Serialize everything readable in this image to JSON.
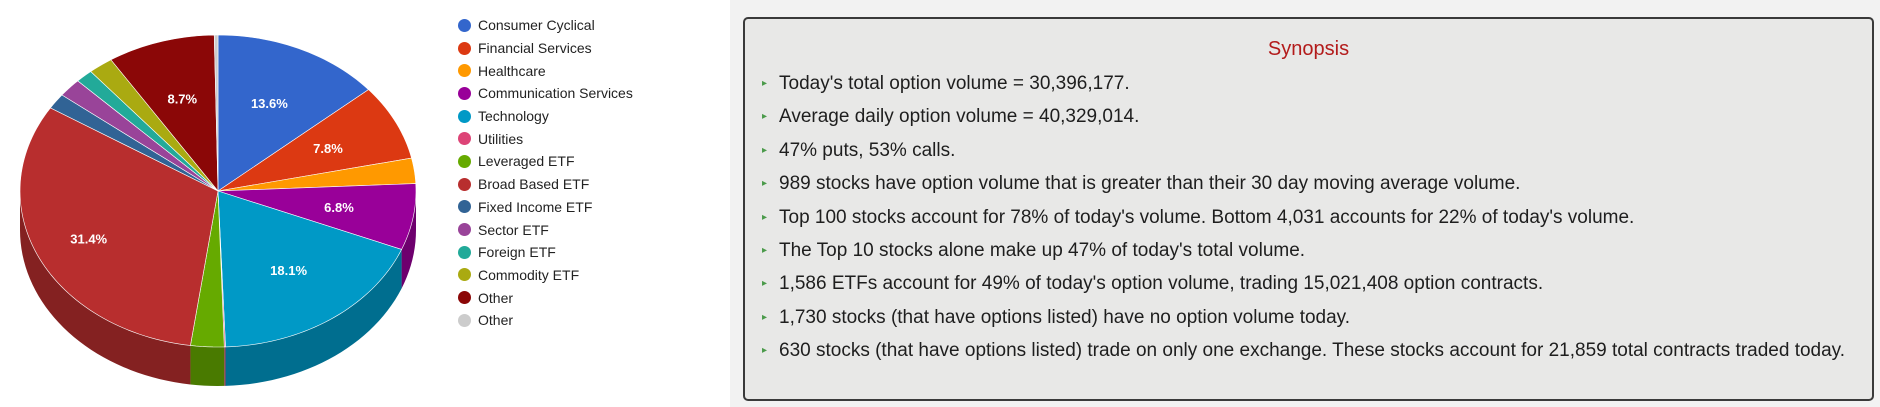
{
  "chart_data": {
    "type": "pie",
    "title": "",
    "slices": [
      {
        "name": "Consumer Cyclical",
        "value": 13.6,
        "label": "13.6%",
        "color": "#3366cc"
      },
      {
        "name": "Financial Services",
        "value": 7.8,
        "label": "7.8%",
        "color": "#dc3912"
      },
      {
        "name": "Healthcare",
        "value": 2.6,
        "label": "",
        "color": "#ff9900"
      },
      {
        "name": "Communication Services",
        "value": 6.8,
        "label": "6.8%",
        "color": "#990099"
      },
      {
        "name": "Technology",
        "value": 18.1,
        "label": "18.1%",
        "color": "#0099c6"
      },
      {
        "name": "Utilities",
        "value": 0.1,
        "label": "",
        "color": "#dd4477"
      },
      {
        "name": "Leveraged ETF",
        "value": 2.7,
        "label": "",
        "color": "#66aa00"
      },
      {
        "name": "Broad Based ETF",
        "value": 31.4,
        "label": "31.4%",
        "color": "#b82e2e"
      },
      {
        "name": "Fixed Income ETF",
        "value": 1.6,
        "label": "",
        "color": "#316395"
      },
      {
        "name": "Sector ETF",
        "value": 1.9,
        "label": "",
        "color": "#994499"
      },
      {
        "name": "Foreign ETF",
        "value": 1.4,
        "label": "",
        "color": "#22aa99"
      },
      {
        "name": "Commodity ETF",
        "value": 2.0,
        "label": "",
        "color": "#aaaa11"
      },
      {
        "name": "Other",
        "value": 8.7,
        "label": "8.7%",
        "color": "#8b0707"
      },
      {
        "name": "Other",
        "value": 0.3,
        "label": "",
        "color": "#cccccc"
      }
    ],
    "legend_position": "right",
    "style": "3d"
  },
  "synopsis": {
    "title": "Synopsis",
    "items": [
      "Today's total option volume = 30,396,177.",
      "Average daily option volume = 40,329,014.",
      "47% puts, 53% calls.",
      "989 stocks have option volume that is greater than their 30 day moving average volume.",
      "Top 100 stocks account for 78% of today's volume. Bottom 4,031 accounts for 22% of today's volume.",
      "The Top 10 stocks alone make up 47% of today's total volume.",
      "1,586 ETFs account for 49% of today's option volume, trading 15,021,408 option contracts.",
      "1,730 stocks (that have options listed) have no option volume today.",
      "630 stocks (that have options listed) trade on only one exchange. These stocks account for 21,859 total contracts traded today."
    ],
    "bullet_color": "#4a9a4a",
    "title_color": "#b31b1b"
  }
}
